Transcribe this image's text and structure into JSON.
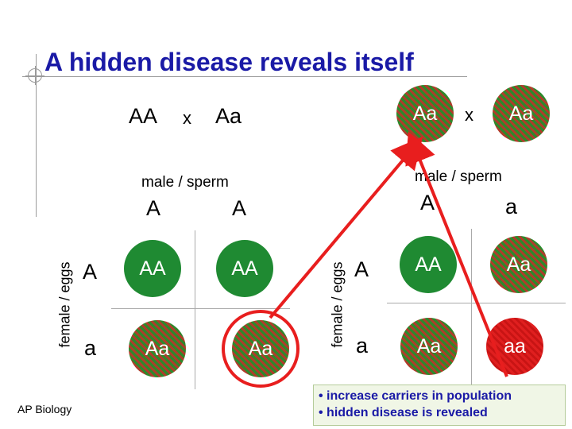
{
  "title": "A hidden disease reveals itself",
  "left_cross": {
    "parent1": "AA",
    "x": "x",
    "parent2": "Aa",
    "col_header": "male / sperm",
    "cols": [
      "A",
      "A"
    ],
    "row_header": "female / eggs",
    "rows": [
      "A",
      "a"
    ],
    "cells": [
      "AA",
      "AA",
      "Aa",
      "Aa"
    ]
  },
  "right_cross": {
    "parent1": "Aa",
    "x": "x",
    "parent2": "Aa",
    "col_header": "male / sperm",
    "cols": [
      "A",
      "a"
    ],
    "row_header": "female / eggs",
    "rows": [
      "A",
      "a"
    ],
    "cells": [
      "AA",
      "Aa",
      "Aa",
      "aa"
    ]
  },
  "footer": "AP Biology",
  "bullets": [
    "• increase carriers in population",
    "• hidden disease is revealed"
  ],
  "colors": {
    "title": "#1a1aa6",
    "dominant_green": "#1f8a32",
    "carrier_hatch_red": "#b23a2a",
    "recessive_red": "#e01f1f",
    "arrow_red": "#e81e1e",
    "bullet_text": "#1a1aa6"
  }
}
